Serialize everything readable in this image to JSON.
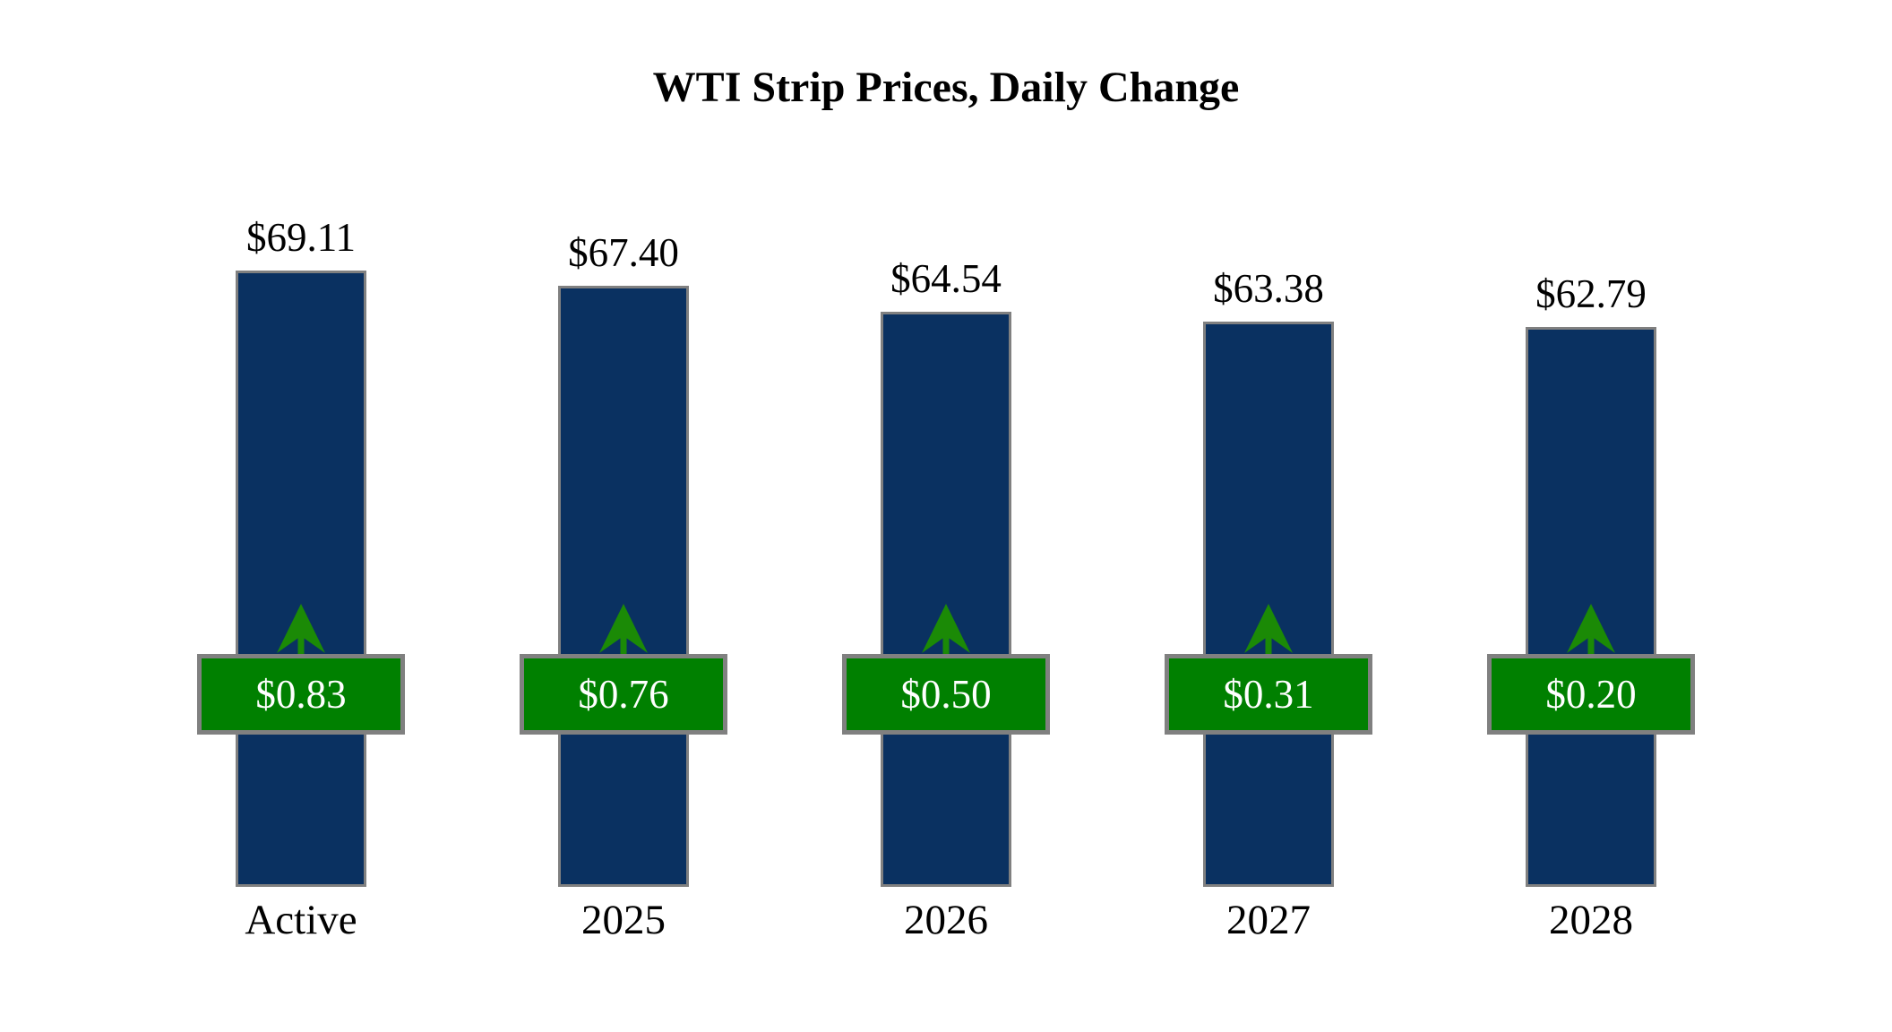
{
  "title": "WTI Strip Prices, Daily Change",
  "chart_data": {
    "type": "bar",
    "title": "WTI Strip Prices, Daily Change",
    "categories": [
      "Active",
      "2025",
      "2026",
      "2027",
      "2028"
    ],
    "series": [
      {
        "name": "strip_price",
        "values": [
          69.11,
          67.4,
          64.54,
          63.38,
          62.79
        ],
        "labels": [
          "$69.11",
          "$67.40",
          "$64.54",
          "$63.38",
          "$62.79"
        ]
      },
      {
        "name": "daily_change",
        "values": [
          0.83,
          0.76,
          0.5,
          0.31,
          0.2
        ],
        "labels": [
          "$0.83",
          "$0.76",
          "$0.50",
          "$0.31",
          "$0.20"
        ],
        "direction": "up"
      }
    ],
    "ylim": [
      0,
      99.45
    ],
    "grid": false,
    "legend_position": "none",
    "colors": {
      "bar_fill": "#0a3161",
      "bar_border": "#808080",
      "badge_fill": "#008000",
      "badge_border": "#808080",
      "badge_text": "#ffffff",
      "arrow": "#1b8a06",
      "label_text": "#000000"
    }
  }
}
